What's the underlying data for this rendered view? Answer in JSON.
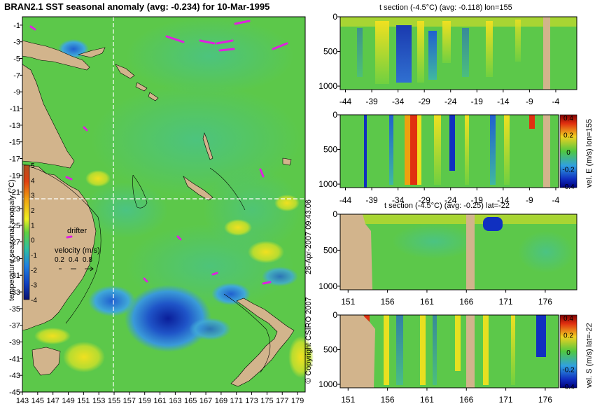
{
  "chart_data": [
    {
      "type": "heatmap",
      "title": "BRAN2.1 SST seasonal anomaly (avg: -0.234) for 10-Mar-1995",
      "variable": "temperature seasonal anomaly (°C)",
      "xlim": [
        143,
        180
      ],
      "ylim": [
        -45,
        0
      ],
      "x_ticks": [
        "143",
        "145",
        "147",
        "149",
        "151",
        "153",
        "155",
        "157",
        "159",
        "161",
        "163",
        "165",
        "167",
        "169",
        "171",
        "173",
        "175",
        "177",
        "179"
      ],
      "y_ticks": [
        "-1",
        "-3",
        "-5",
        "-7",
        "-9",
        "-11",
        "-13",
        "-15",
        "-17",
        "-19",
        "-21",
        "-23",
        "-25",
        "-27",
        "-29",
        "-31",
        "-33",
        "-35",
        "-37",
        "-39",
        "-41",
        "-43",
        "-45"
      ],
      "colorbar_ticks": [
        "5",
        "4",
        "3",
        "2",
        "1",
        "0",
        "-1",
        "-2",
        "-3",
        "-4"
      ],
      "colorbar_range": [
        -4,
        5
      ],
      "section_lines": {
        "lon": 155,
        "lat": -22
      },
      "legend": {
        "drifter_label": "drifter",
        "velocity_label": "velocity (m/s)",
        "velocity_values": [
          "0.2",
          "0.4",
          "0.8"
        ]
      },
      "cool_anomaly_center": {
        "lon": 162,
        "lat": -37,
        "value": -4
      }
    },
    {
      "type": "heatmap",
      "title": "t section (-4.5°C) (avg: -0.118) lon=155",
      "x_ticks": [
        "-44",
        "-39",
        "-34",
        "-29",
        "-24",
        "-19",
        "-14",
        "-9",
        "-4"
      ],
      "y_ticks": [
        "0",
        "500",
        "1000"
      ],
      "xlim": [
        -45,
        0
      ],
      "ylim": [
        1050,
        0
      ]
    },
    {
      "type": "heatmap",
      "title": "",
      "x_ticks": [
        "-44",
        "-39",
        "-34",
        "-29",
        "-24",
        "-19",
        "-14",
        "-9",
        "-4"
      ],
      "y_ticks": [
        "0",
        "500",
        "1000"
      ],
      "xlim": [
        -45,
        0
      ],
      "ylim": [
        1050,
        0
      ],
      "colorbar_label": "vel. E (m/s) lon=155",
      "colorbar_ticks": [
        "0.4",
        "0.2",
        "0",
        "-0.2",
        "-0.4"
      ],
      "colorbar_range": [
        -0.4,
        0.4
      ]
    },
    {
      "type": "heatmap",
      "title": "t section (-4.5°C) (avg: -0.25) lat=-22",
      "x_ticks": [
        "151",
        "156",
        "161",
        "166",
        "171",
        "176"
      ],
      "y_ticks": [
        "0",
        "500",
        "1000"
      ],
      "xlim": [
        150,
        180
      ],
      "ylim": [
        1050,
        0
      ]
    },
    {
      "type": "heatmap",
      "title": "",
      "x_ticks": [
        "151",
        "156",
        "161",
        "166",
        "171",
        "176"
      ],
      "y_ticks": [
        "0",
        "500",
        "1000"
      ],
      "xlim": [
        150,
        180
      ],
      "ylim": [
        1050,
        0
      ],
      "colorbar_label": "vel. S (m/s) lat=-22",
      "colorbar_ticks": [
        "0.4",
        "0.2",
        "0",
        "-0.2",
        "-0.4"
      ],
      "colorbar_range": [
        -0.4,
        0.4
      ]
    }
  ],
  "copyright": "© Copyright CSIRO 2007",
  "timestamp": "28-Apr-2007 09:43:06",
  "colors": {
    "land": "#d2b48c",
    "bg_green": "#5cc84a",
    "cool": "#2a7fd0",
    "deep_cool": "#0a1e9a",
    "warm": "#e8e020",
    "hot": "#e03010",
    "vectors": "#e020e0"
  }
}
